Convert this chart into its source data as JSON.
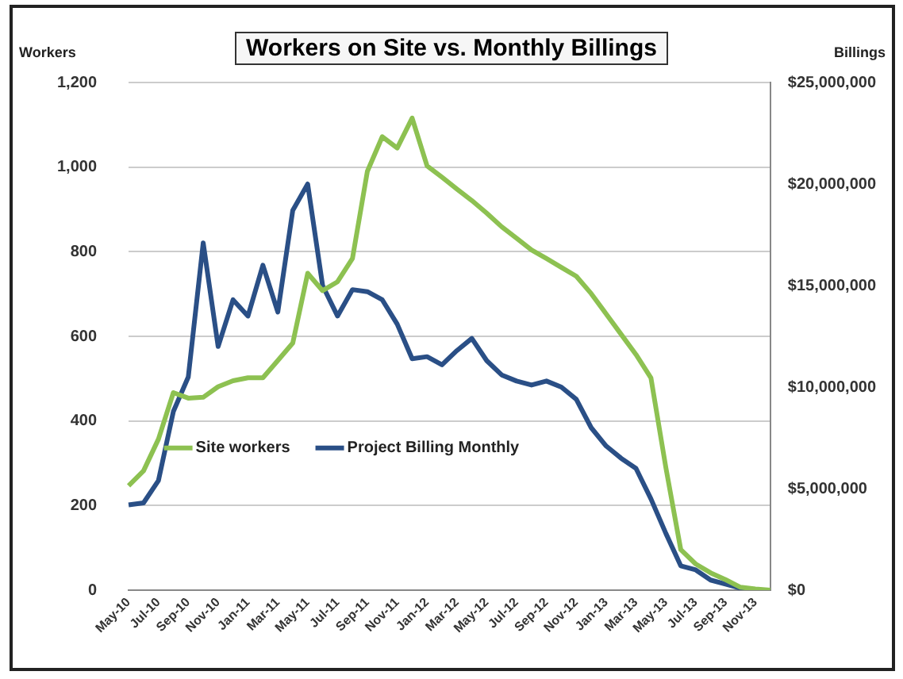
{
  "chart_data": {
    "type": "line",
    "title": "Workers on Site vs. Monthly Billings",
    "ylabel": "Workers",
    "y2label": "Billings",
    "categories": [
      "May-10",
      null,
      "Jul-10",
      null,
      "Sep-10",
      null,
      "Nov-10",
      null,
      "Jan-11",
      null,
      "Mar-11",
      null,
      "May-11",
      null,
      "Jul-11",
      null,
      "Sep-11",
      null,
      "Nov-11",
      null,
      "Jan-12",
      null,
      "Mar-12",
      null,
      "May-12",
      null,
      "Jul-12",
      null,
      "Sep-12",
      null,
      "Nov-12",
      null,
      "Jan-13",
      null,
      "Mar-13",
      null,
      "May-13",
      null,
      "Jul-13",
      null,
      "Sep-13",
      null,
      "Nov-13",
      null
    ],
    "series": [
      {
        "name": "Site workers",
        "color": "#8dc151",
        "values": [
          247,
          282,
          357,
          467,
          454,
          456,
          481,
          495,
          502,
          502,
          543,
          584,
          749,
          708,
          729,
          784,
          990,
          1072,
          1045,
          1116,
          1003,
          976,
          948,
          921,
          891,
          859,
          832,
          804,
          784,
          763,
          742,
          701,
          653,
          605,
          557,
          502,
          290,
          96,
          62,
          41,
          25,
          7,
          3,
          0
        ]
      },
      {
        "name": "Project Billing Monthly",
        "color": "#2a4f86",
        "axis": "y2",
        "values": [
          4200000,
          4300000,
          5400000,
          8800000,
          10500000,
          17100000,
          12000000,
          14300000,
          13500000,
          16000000,
          13700000,
          18700000,
          20000000,
          15000000,
          13500000,
          14800000,
          14700000,
          14300000,
          13100000,
          11400000,
          11500000,
          11100000,
          11800000,
          12400000,
          11300000,
          10600000,
          10300000,
          10100000,
          10300000,
          10000000,
          9400000,
          8000000,
          7100000,
          6500000,
          6000000,
          4500000,
          2800000,
          1200000,
          1000000,
          500000,
          300000,
          100000,
          0,
          0
        ]
      }
    ],
    "ylim": [
      0,
      1200
    ],
    "yticks": [
      {
        "value": 0,
        "label": "0"
      },
      {
        "value": 200,
        "label": "200"
      },
      {
        "value": 400,
        "label": "400"
      },
      {
        "value": 600,
        "label": "600"
      },
      {
        "value": 800,
        "label": "800"
      },
      {
        "value": 1000,
        "label": "1,000"
      },
      {
        "value": 1200,
        "label": "1,200"
      }
    ],
    "y2lim": [
      0,
      25000000
    ],
    "y2ticks": [
      {
        "value": 0,
        "label": "$0"
      },
      {
        "value": 5000000,
        "label": "$5,000,000"
      },
      {
        "value": 10000000,
        "label": "$10,000,000"
      },
      {
        "value": 15000000,
        "label": "$15,000,000"
      },
      {
        "value": 20000000,
        "label": "$20,000,000"
      },
      {
        "value": 25000000,
        "label": "$25,000,000"
      }
    ],
    "grid": "y",
    "legend": "center",
    "marker": "none",
    "line_style": "solid"
  }
}
